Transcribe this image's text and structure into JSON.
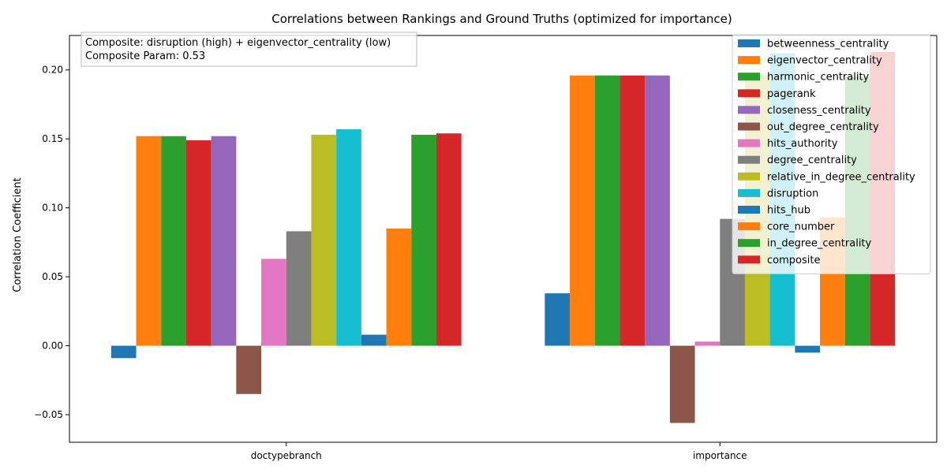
{
  "chart_data": {
    "type": "bar",
    "title": "Correlations between Rankings and Ground Truths (optimized for importance)",
    "ylabel": "Correlation Coefficient",
    "xlabel": "",
    "ylim": [
      -0.07,
      0.225
    ],
    "yticks": [
      -0.05,
      0.0,
      0.05,
      0.1,
      0.15,
      0.2
    ],
    "ytick_labels": [
      "−0.05",
      "0.00",
      "0.05",
      "0.10",
      "0.15",
      "0.20"
    ],
    "categories": [
      "doctypebranch",
      "importance"
    ],
    "legend_position": "top-right",
    "annotation": [
      "Composite: disruption (high) + eigenvector_centrality (low)",
      "Composite Param: 0.53"
    ],
    "series": [
      {
        "name": "betweenness_centrality",
        "color": "#1f77b4",
        "values": [
          -0.009,
          0.038
        ]
      },
      {
        "name": "eigenvector_centrality",
        "color": "#ff7f0e",
        "values": [
          0.152,
          0.196
        ]
      },
      {
        "name": "harmonic_centrality",
        "color": "#2ca02c",
        "values": [
          0.152,
          0.196
        ]
      },
      {
        "name": "pagerank",
        "color": "#d62728",
        "values": [
          0.149,
          0.196
        ]
      },
      {
        "name": "closeness_centrality",
        "color": "#9467bd",
        "values": [
          0.152,
          0.196
        ]
      },
      {
        "name": "out_degree_centrality",
        "color": "#8c564b",
        "values": [
          -0.035,
          -0.056
        ]
      },
      {
        "name": "hits_authority",
        "color": "#e377c2",
        "values": [
          0.063,
          0.003
        ]
      },
      {
        "name": "degree_centrality",
        "color": "#7f7f7f",
        "values": [
          0.083,
          0.092
        ]
      },
      {
        "name": "relative_in_degree_centrality",
        "color": "#bcbd22",
        "values": [
          0.153,
          0.196
        ]
      },
      {
        "name": "disruption",
        "color": "#17becf",
        "values": [
          0.157,
          0.212
        ]
      },
      {
        "name": "hits_hub",
        "color": "#1f77b4",
        "values": [
          0.008,
          -0.005
        ]
      },
      {
        "name": "core_number",
        "color": "#ff7f0e",
        "values": [
          0.085,
          0.093
        ]
      },
      {
        "name": "in_degree_centrality",
        "color": "#2ca02c",
        "values": [
          0.153,
          0.195
        ]
      },
      {
        "name": "composite",
        "color": "#d62728",
        "values": [
          0.154,
          0.213
        ]
      }
    ]
  }
}
